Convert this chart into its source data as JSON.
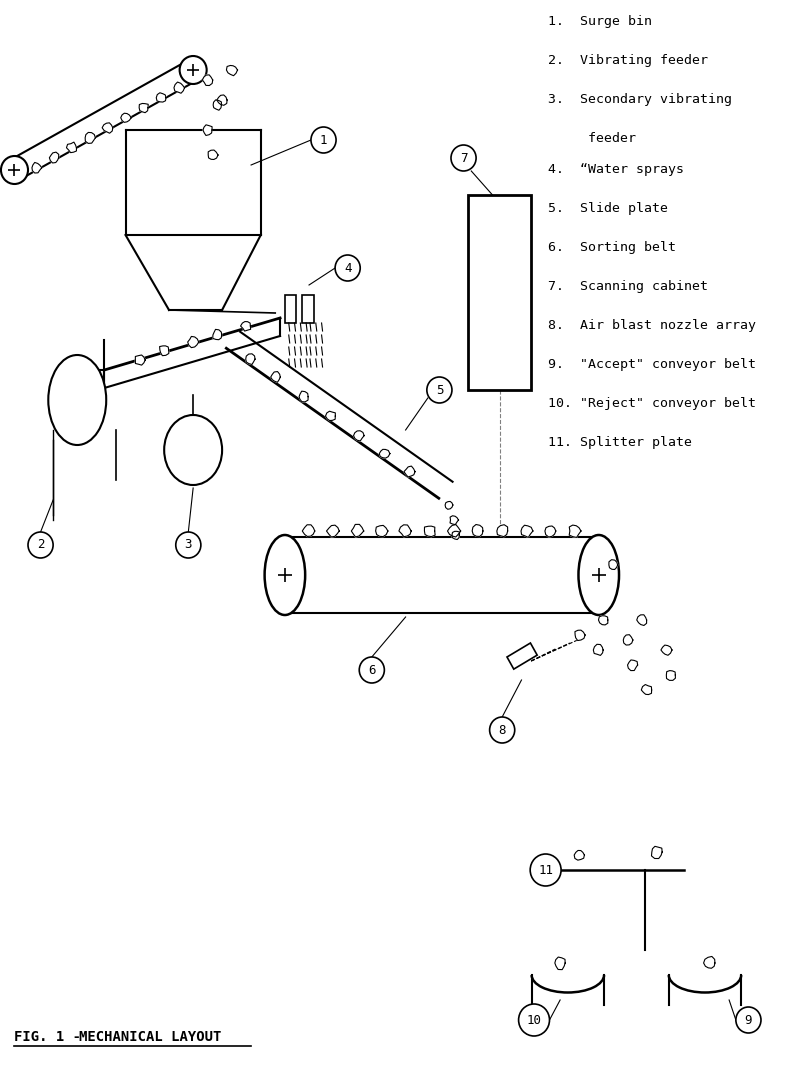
{
  "title": "FIG. 1 - MECHANICAL LAYOUT",
  "bg_color": "#ffffff",
  "legend_lines": [
    "1.  Surge bin",
    "2.  Vibrating feeder",
    "3.  Secondary vibrating\n    feeder",
    "4.  \"Water sprays",
    "5.  Slide plate",
    "6.  Sorting belt",
    "7.  Scanning cabinet",
    "8.  Air blast nozzle array",
    "9.  \"Accept\" conveyor belt",
    "10. \"Reject\" conveyor belt",
    "11. Splitter plate"
  ]
}
